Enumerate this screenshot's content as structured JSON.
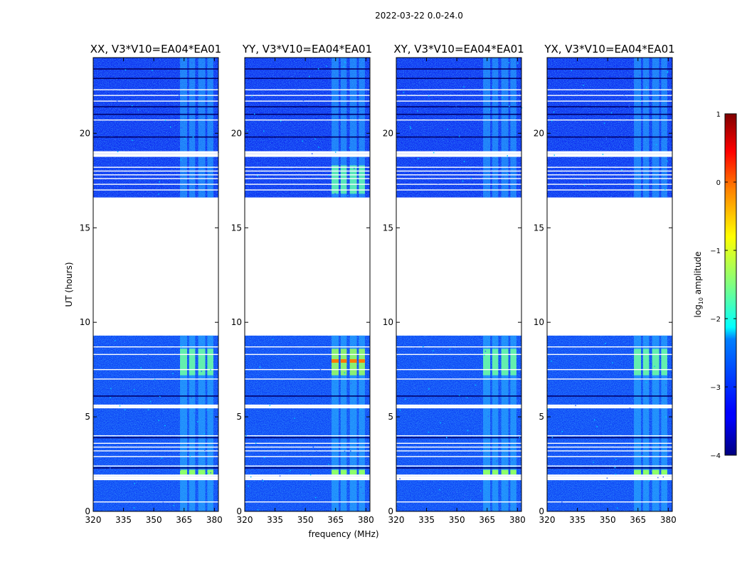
{
  "figure": {
    "suptitle": "2022-03-22 0.0-24.0"
  },
  "chart_data": {
    "type": "heatmap",
    "xlabel": "frequency (MHz)",
    "ylabel": "UT (hours)",
    "xlim": [
      320,
      382
    ],
    "ylim": [
      0,
      24
    ],
    "x_ticks": [
      320,
      335,
      350,
      365,
      380
    ],
    "y_ticks": [
      0,
      5,
      10,
      15,
      20
    ],
    "panels": [
      {
        "title": "XX, V3*V10=EA04*EA01",
        "pol": "XX"
      },
      {
        "title": "YY, V3*V10=EA04*EA01",
        "pol": "YY"
      },
      {
        "title": "XY, V3*V10=EA04*EA01",
        "pol": "XY"
      },
      {
        "title": "YX, V3*V10=EA04*EA01",
        "pol": "YX"
      }
    ],
    "data_gap_hours": [
      [
        9.3,
        16.6
      ]
    ],
    "rfi_band_mhz": [
      363,
      380
    ],
    "colorbar": {
      "label_main": "log",
      "label_sub": "10",
      "label_tail": " amplitude",
      "range": [
        -4,
        1
      ],
      "ticks": [
        -4,
        -3,
        -2,
        -1,
        0,
        1
      ],
      "colormap": "jet"
    }
  }
}
